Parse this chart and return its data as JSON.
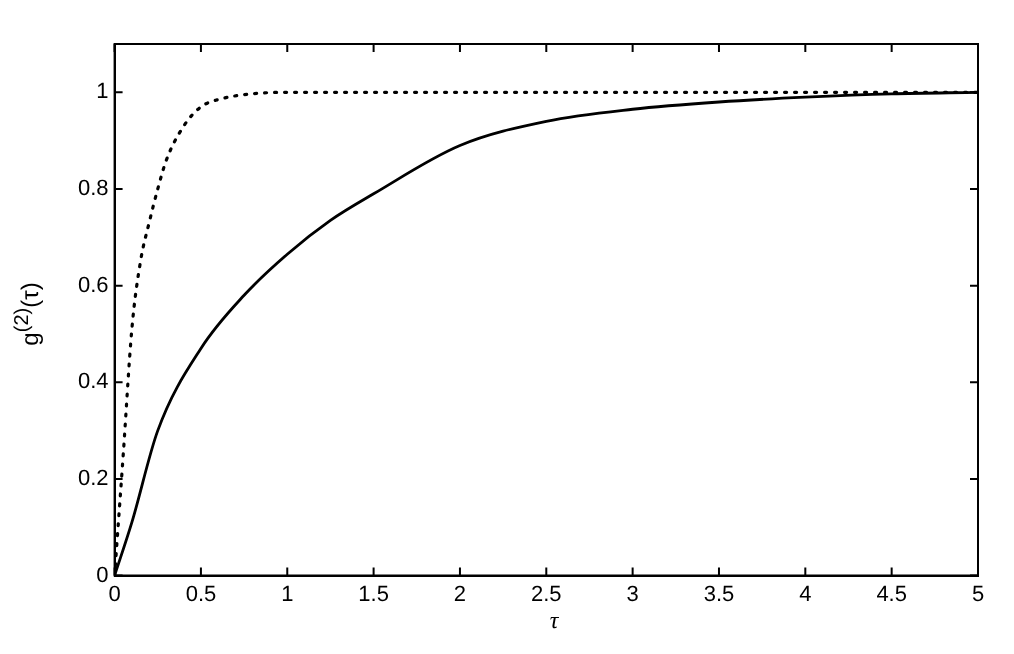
{
  "chart_data": {
    "type": "line",
    "xlabel": "τ",
    "ylabel": "g$^{(2)}$(τ)",
    "xlim": [
      0,
      5
    ],
    "ylim": [
      0,
      1.1
    ],
    "xticks": [
      0,
      0.5,
      1,
      1.5,
      2,
      2.5,
      3,
      3.5,
      4,
      4.5,
      5
    ],
    "yticks": [
      0,
      0.2,
      0.4,
      0.6,
      0.8,
      1
    ],
    "grid": false,
    "legend": false,
    "marker": "none",
    "series": [
      {
        "color": "#000000",
        "line_style": "solid",
        "x": [
          0,
          0.1,
          0.25,
          0.5,
          0.75,
          1,
          1.25,
          1.5,
          2,
          2.5,
          3,
          3.5,
          4,
          4.5,
          5
        ],
        "values": [
          0,
          0.11,
          0.3,
          0.47,
          0.58,
          0.665,
          0.735,
          0.79,
          0.89,
          0.94,
          0.965,
          0.98,
          0.99,
          0.997,
          1
        ]
      },
      {
        "color": "#000000",
        "line_style": "dotted",
        "x": [
          0,
          0.05,
          0.1,
          0.15,
          0.2,
          0.25,
          0.3,
          0.4,
          0.5,
          0.6,
          0.8,
          1,
          2,
          3,
          4,
          5
        ],
        "values": [
          0,
          0.25,
          0.51,
          0.65,
          0.73,
          0.8,
          0.86,
          0.93,
          0.97,
          0.985,
          0.997,
          1,
          1,
          1,
          1,
          1
        ]
      }
    ]
  }
}
